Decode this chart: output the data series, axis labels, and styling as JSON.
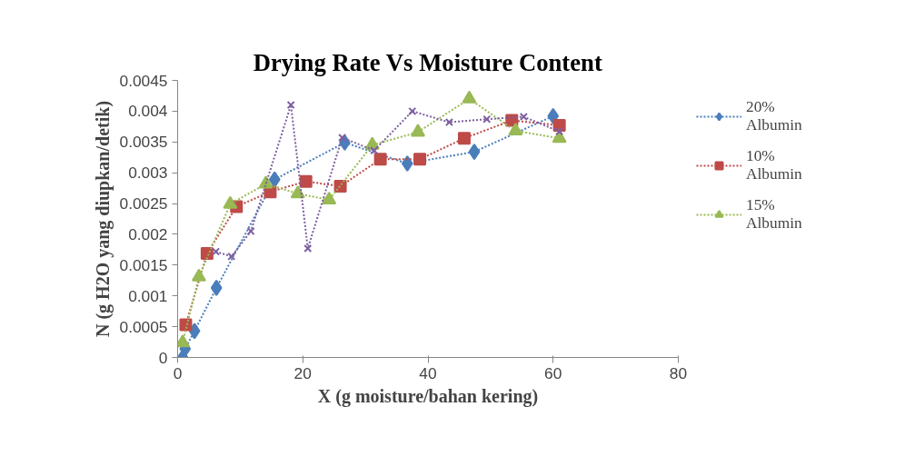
{
  "chart_data": {
    "type": "line",
    "title": "Drying Rate Vs Moisture Content",
    "xlabel": "X (g moisture/bahan kering)",
    "ylabel": "N (g H2O yang diupkan/detik)",
    "xlim": [
      0,
      80
    ],
    "xticks": [
      0,
      20,
      40,
      60,
      80
    ],
    "ylim": [
      0,
      0.0045
    ],
    "yticks": [
      0,
      0.0005,
      0.001,
      0.0015,
      0.002,
      0.0025,
      0.003,
      0.0035,
      0.004,
      0.0045
    ],
    "grid": false,
    "legend": "right",
    "line_style": "dotted",
    "series": [
      {
        "name": "20% Albumin",
        "color": "#4a7ebb",
        "marker": "diamond",
        "x": [
          0.8,
          1.2,
          2.7,
          6.2,
          15.5,
          26.7,
          36.7,
          47.4,
          60.0
        ],
        "values": [
          0,
          0.00014,
          0.00043,
          0.00113,
          0.00289,
          0.00349,
          0.00315,
          0.00334,
          0.00392
        ]
      },
      {
        "name": "10% Albumin",
        "color": "#be4b48",
        "marker": "square",
        "x": [
          1.3,
          4.7,
          9.4,
          14.8,
          20.5,
          26.0,
          32.4,
          38.7,
          45.8,
          53.4,
          61.0
        ],
        "values": [
          0.00053,
          0.00169,
          0.00245,
          0.00269,
          0.00286,
          0.00278,
          0.00322,
          0.00322,
          0.00356,
          0.00385,
          0.00377
        ]
      },
      {
        "name": "15% Albumin",
        "color": "#98b954",
        "marker": "triangle",
        "x": [
          0.8,
          3.4,
          8.4,
          14.1,
          19.2,
          24.2,
          31.1,
          38.4,
          46.6,
          54.0,
          61.0
        ],
        "values": [
          0.00024,
          0.00131,
          0.00249,
          0.00282,
          0.00266,
          0.00256,
          0.00345,
          0.00366,
          0.0042,
          0.00368,
          0.00356
        ]
      },
      {
        "color": "#7d5fa0",
        "marker": "cross",
        "x": [
          6.1,
          8.6,
          11.7,
          18.1,
          20.8,
          26.3,
          31.4,
          37.5,
          43.4,
          49.4,
          55.3,
          61.0
        ],
        "values": [
          0.00172,
          0.00164,
          0.00205,
          0.0041,
          0.00177,
          0.00357,
          0.00336,
          0.004,
          0.00382,
          0.00387,
          0.00391,
          0.00367
        ]
      }
    ]
  }
}
